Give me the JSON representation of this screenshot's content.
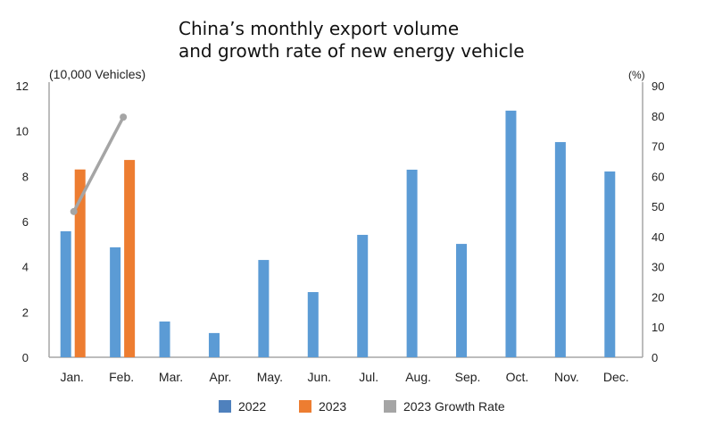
{
  "chart_data": {
    "type": "bar",
    "title_line1": "China’s monthly export volume",
    "title_line2": "and growth rate of new energy vehicle",
    "ylabel": "(10,000 Vehicles)",
    "y2label": "(%)",
    "ylim": [
      0,
      12
    ],
    "y2lim": [
      0,
      90
    ],
    "yticks": [
      "0",
      "2",
      "4",
      "6",
      "8",
      "10",
      "12"
    ],
    "y2ticks": [
      "0",
      "10",
      "20",
      "30",
      "40",
      "50",
      "60",
      "70",
      "80",
      "90"
    ],
    "categories": [
      "Jan.",
      "Feb.",
      "Mar.",
      "Apr.",
      "May.",
      "Jun.",
      "Jul.",
      "Aug.",
      "Sep.",
      "Oct.",
      "Nov.",
      "Dec."
    ],
    "series": [
      {
        "name": "2022",
        "type": "bar",
        "color": "#5b9bd5",
        "values": [
          5.57,
          4.86,
          1.58,
          1.07,
          4.3,
          2.88,
          5.41,
          8.29,
          5.01,
          10.9,
          9.51,
          8.21
        ]
      },
      {
        "name": "2023",
        "type": "bar",
        "color": "#ed7d31",
        "values": [
          8.3,
          8.72,
          null,
          null,
          null,
          null,
          null,
          null,
          null,
          null,
          null,
          null
        ]
      },
      {
        "name": "2023 Growth Rate",
        "type": "line",
        "axis": "right",
        "color": "#a5a5a5",
        "values": [
          48.3,
          79.6,
          null,
          null,
          null,
          null,
          null,
          null,
          null,
          null,
          null,
          null
        ]
      }
    ],
    "legend": "bottom"
  }
}
